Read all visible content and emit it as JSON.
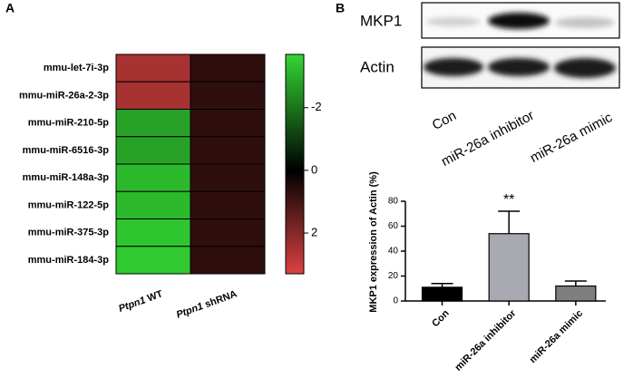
{
  "panel_labels": [
    "A",
    "B"
  ],
  "blot": {
    "rows": [
      "MKP1",
      "Actin"
    ],
    "lanes": [
      "Con",
      "miR-26a inhibitor",
      "miR-26a mimic"
    ]
  },
  "chart_data": [
    {
      "type": "heatmap",
      "x": [
        "Ptpn1 WT",
        "Ptpn1 shRNA"
      ],
      "y": [
        "mmu-let-7i-3p",
        "mmu-miR-26a-2-3p",
        "mmu-miR-210-5p",
        "mmu-miR-6516-3p",
        "mmu-miR-148a-3p",
        "mmu-miR-122-5p",
        "mmu-miR-375-3p",
        "mmu-miR-184-3p"
      ],
      "values": [
        [
          2.5,
          0.7
        ],
        [
          2.5,
          0.7
        ],
        [
          -2.8,
          0.7
        ],
        [
          -2.8,
          0.7
        ],
        [
          -3.2,
          0.7
        ],
        [
          -3.2,
          0.7
        ],
        [
          -3.4,
          0.7
        ],
        [
          -3.5,
          0.7
        ]
      ],
      "colorbar_lim": [
        -3.7,
        3.3
      ],
      "colorbar_ticks": [
        -2,
        0,
        2
      ],
      "colors": {
        "low": "#33d633",
        "mid": "#000000",
        "high": "#dc4242"
      }
    },
    {
      "type": "bar",
      "ylabel": "MKP1 expression of Actin (%)",
      "categories": [
        "Con",
        "miR-26a inhibitor",
        "miR-26a mimic"
      ],
      "values": [
        11,
        54,
        12
      ],
      "errors": [
        3,
        18,
        4
      ],
      "colors": [
        "#000000",
        "#a9a9b2",
        "#7f7f7f"
      ],
      "annotations": [
        null,
        "**",
        null
      ],
      "ylim": [
        0,
        80
      ],
      "yticks": [
        0,
        20,
        40,
        60,
        80
      ]
    }
  ]
}
